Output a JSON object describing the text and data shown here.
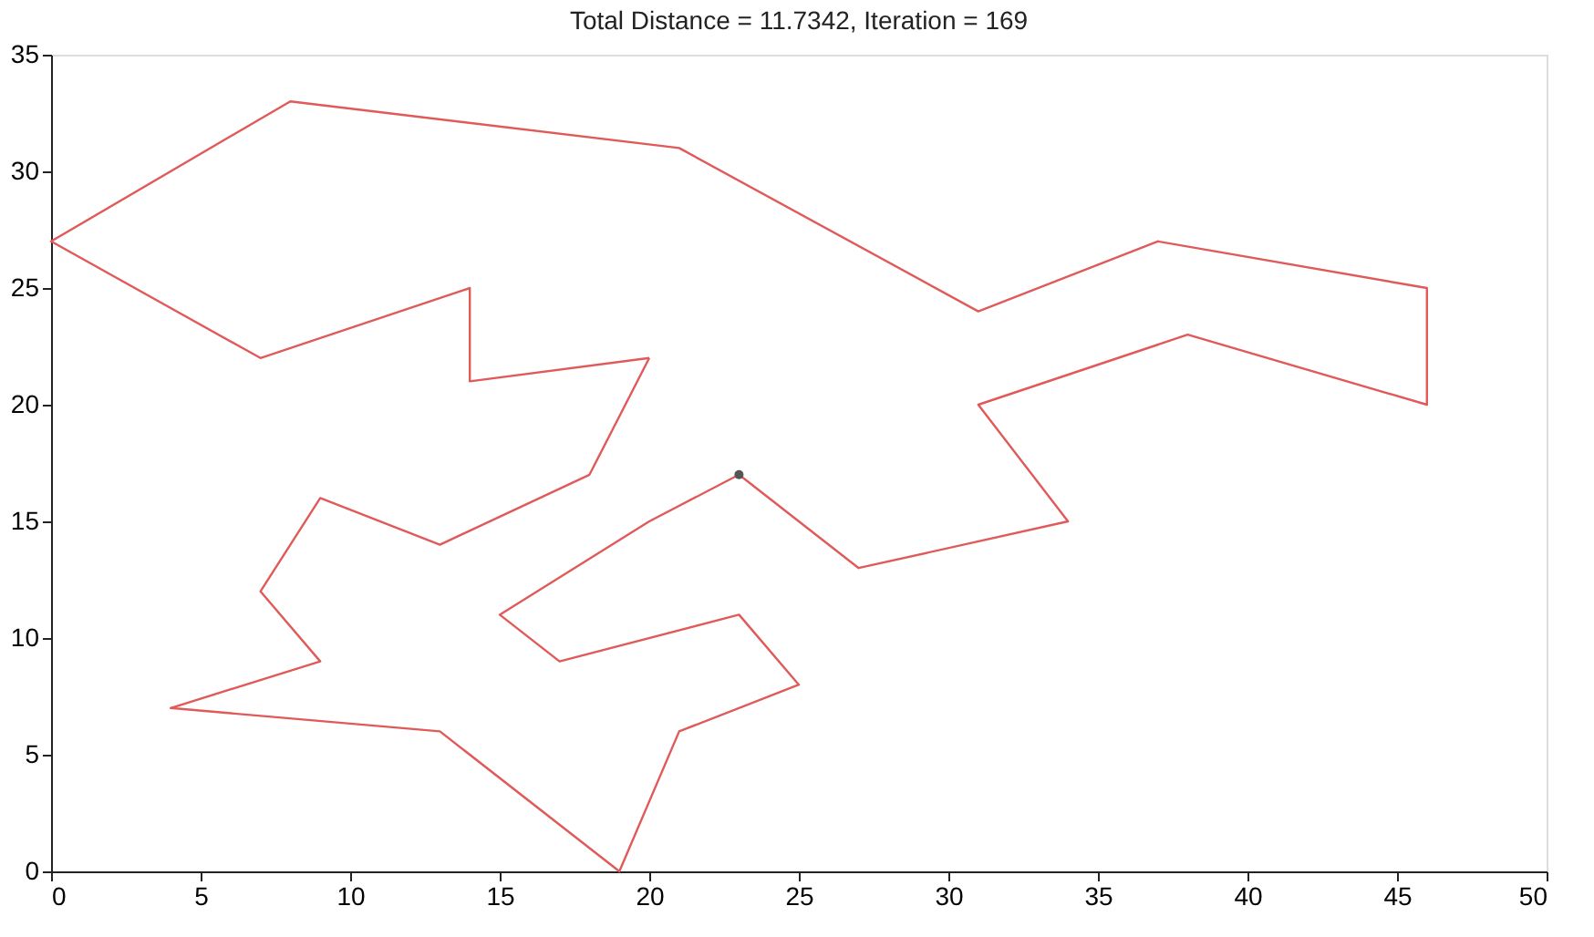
{
  "chart_data": {
    "type": "line",
    "title": "Total Distance = 11.7342, Iteration = 169",
    "xlim": [
      0,
      50
    ],
    "ylim": [
      0,
      35
    ],
    "xticks": [
      0,
      5,
      10,
      15,
      20,
      25,
      30,
      35,
      40,
      45,
      50
    ],
    "yticks": [
      0,
      5,
      10,
      15,
      20,
      25,
      30,
      35
    ],
    "grid": false,
    "line_style": "solid",
    "series": [
      {
        "marker": "none",
        "color": "#e05a5a",
        "x": [
          23,
          20,
          15,
          17,
          23,
          25,
          21,
          19,
          13,
          4,
          9,
          7,
          9,
          13,
          18,
          20
        ],
        "values": [
          17,
          15,
          11,
          9,
          11,
          8,
          6,
          0,
          6,
          7,
          9,
          12,
          16,
          14,
          17,
          22
        ]
      },
      {
        "marker": "none",
        "color": "#e05a5a",
        "x": [
          20,
          14,
          14,
          7,
          0,
          8,
          21,
          31,
          37,
          46,
          46,
          38,
          31,
          34,
          27,
          23
        ],
        "values": [
          22,
          21,
          25,
          22,
          27,
          33,
          31,
          24,
          27,
          25,
          20,
          23,
          20,
          15,
          13,
          17
        ]
      },
      {
        "type": "scatter",
        "marker": "circle",
        "color": "#555555",
        "x": [
          23
        ],
        "values": [
          17
        ]
      }
    ]
  }
}
